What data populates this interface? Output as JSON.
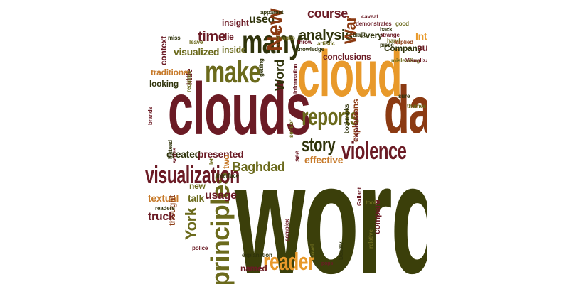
{
  "palette": {
    "olive": "#3b3f0a",
    "maroon": "#6b1b25",
    "orange": "#e8992a",
    "brown": "#8b3a12",
    "olive_light": "#6b6a1c",
    "tan": "#c77a2a",
    "olive_dark": "#2f330b"
  },
  "cloud": {
    "words": [
      "word",
      "clouds",
      "cloud",
      "data",
      "make",
      "many",
      "reports",
      "violence",
      "principles",
      "reader",
      "story",
      "visualization",
      "textual",
      "talk",
      "usage",
      "York",
      "truck",
      "new",
      "thought",
      "named",
      "created",
      "presented",
      "two",
      "Baghdad",
      "effective",
      "see",
      "explosions",
      "conclusions",
      "analysis",
      "course",
      "War",
      "Every",
      "Company",
      "insight",
      "used",
      "die",
      "inside",
      "time",
      "visualized",
      "traditional",
      "looking",
      "little",
      "New",
      "Word",
      "context",
      "interface",
      "let",
      "compare",
      "relative",
      "complex",
      "explanation",
      "novel",
      "pops",
      "Deadly",
      "police",
      "readers",
      "tool",
      "Gallant",
      "miss",
      "leave",
      "apparent",
      "caveat",
      "back",
      "hand",
      "strange",
      "piece",
      "applied",
      "misleading",
      "Visualization",
      "Inter",
      "subj",
      "sure",
      "themes",
      "brands",
      "getting",
      "information",
      "bookmarks",
      "importance",
      "sensor",
      "artistic",
      "knowledge",
      "throw",
      "adding",
      "requires",
      "series",
      "Instead",
      "demonstrates",
      "good",
      "blast",
      "images"
    ]
  }
}
